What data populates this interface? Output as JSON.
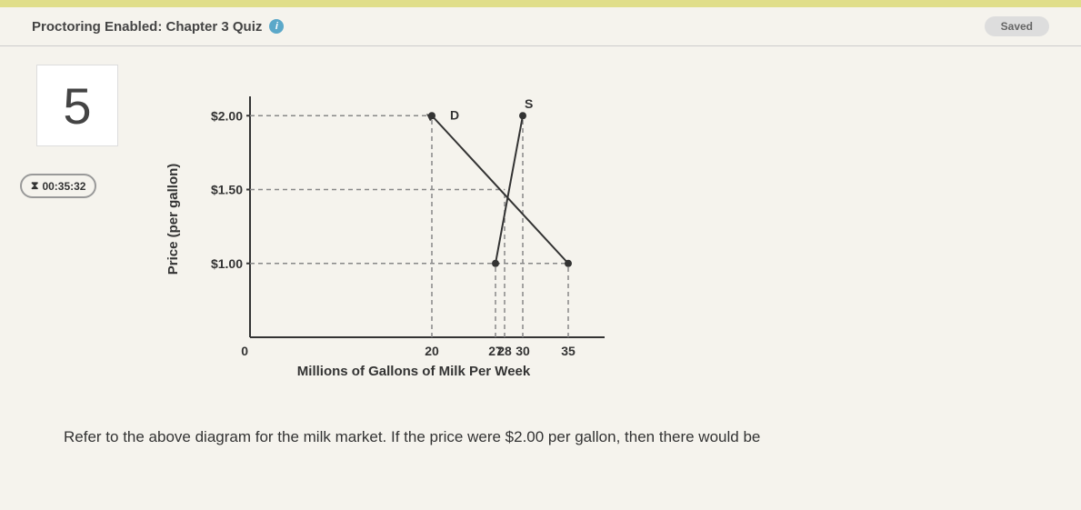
{
  "header": {
    "title": "Proctoring Enabled: Chapter 3 Quiz",
    "saved": "Saved"
  },
  "question": {
    "number": "5",
    "timer": "00:35:32",
    "prompt": "Refer to the above diagram for the milk market. If the price were $2.00 per gallon, then there would be"
  },
  "chart": {
    "ylabel": "Price (per gallon)",
    "xlabel": "Millions of Gallons of Milk Per Week",
    "yticks": [
      "$1.00",
      "$1.50",
      "$2.00"
    ],
    "xticks": [
      "0",
      "20",
      "27",
      "28",
      "30",
      "35"
    ],
    "labels": {
      "D": "D",
      "S": "S"
    },
    "plot": {
      "ox": 110,
      "oy": 310,
      "pxw": 380,
      "pxh": 260,
      "xmin": 0,
      "xmax": 38,
      "ymin": 0.5,
      "ymax": 2.1,
      "ytick_vals": [
        1.0,
        1.5,
        2.0
      ],
      "xtick_vals": [
        0,
        20,
        27,
        28,
        30,
        35
      ],
      "demand": [
        [
          20,
          2.0
        ],
        [
          35,
          1.0
        ]
      ],
      "supply": [
        [
          27,
          1.0
        ],
        [
          30,
          2.0
        ]
      ],
      "vdashes_to_y": [
        [
          20,
          2.0
        ],
        [
          27,
          1.0
        ],
        [
          28,
          1.5
        ],
        [
          30,
          2.0
        ],
        [
          35,
          1.0
        ]
      ],
      "hdashes": [
        [
          2.0,
          20
        ],
        [
          1.5,
          28
        ],
        [
          1.0,
          35
        ]
      ],
      "D_label_at": [
        22,
        2.0
      ],
      "S_label_at": [
        30.2,
        2.05
      ]
    },
    "colors": {
      "bg": "#f5f3ed",
      "axis": "#333333",
      "dash": "#888888",
      "text": "#333333"
    }
  }
}
